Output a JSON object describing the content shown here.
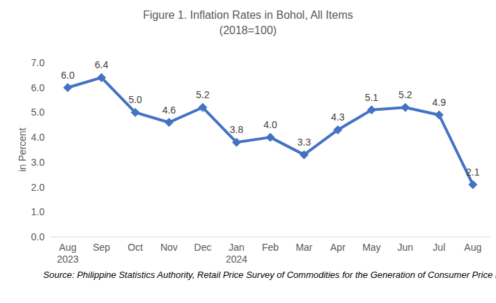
{
  "chart_data": {
    "type": "line",
    "title": "Figure 1. Inflation Rates in Bohol, All Items",
    "subtitle": "(2018=100)",
    "y_label": "in Percent",
    "source": "Source: Philippine Statistics Authority, Retail Price Survey of Commodities for the Generation of Consumer Price Index",
    "categories": [
      "Aug\n2023",
      "Sep",
      "Oct",
      "Nov",
      "Dec",
      "Jan\n2024",
      "Feb",
      "Mar",
      "Apr",
      "May",
      "Jun",
      "Jul",
      "Aug"
    ],
    "values": [
      6.0,
      6.4,
      5.0,
      4.6,
      5.2,
      3.8,
      4.0,
      3.3,
      4.3,
      5.1,
      5.2,
      4.9,
      2.1
    ],
    "value_labels": [
      "6.0",
      "6.4",
      "5.0",
      "4.6",
      "5.2",
      "3.8",
      "4.0",
      "3.3",
      "4.3",
      "5.1",
      "5.2",
      "4.9",
      "2.1"
    ],
    "color": "#4472c4",
    "marker": "diamond",
    "data_labels": true,
    "grid": false,
    "ylim": [
      0,
      7
    ],
    "yticks": [
      {
        "value": 0,
        "label": "0.0"
      },
      {
        "value": 1,
        "label": "1.0"
      },
      {
        "value": 2,
        "label": "2.0"
      },
      {
        "value": 3,
        "label": "3.0"
      },
      {
        "value": 4,
        "label": "4.0"
      },
      {
        "value": 5,
        "label": "5.0"
      },
      {
        "value": 6,
        "label": "6.0"
      },
      {
        "value": 7,
        "label": "7.0"
      }
    ]
  }
}
